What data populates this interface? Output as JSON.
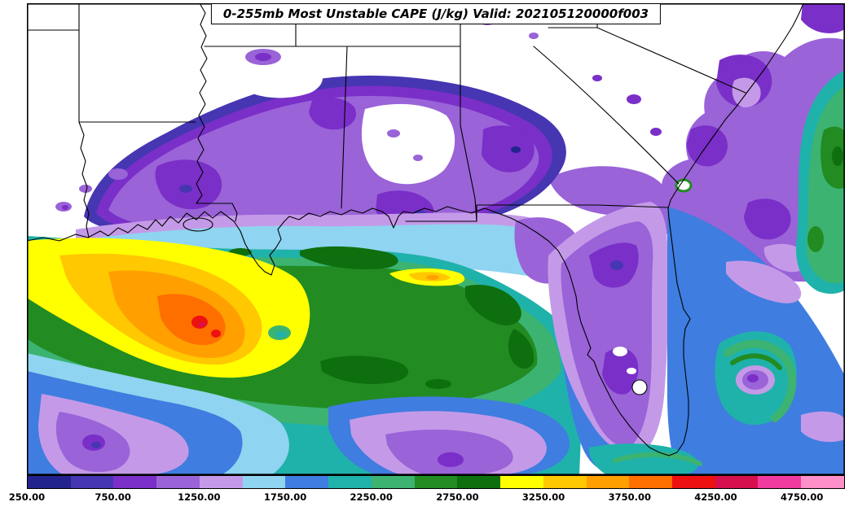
{
  "title": "0-255mb Most Unstable CAPE (J/kg) Valid: 202105120000f003",
  "chart_data": {
    "type": "heatmap",
    "title": "0-255mb Most Unstable CAPE (J/kg) Valid: 202105120000f003",
    "field": "Most Unstable CAPE, 0-255mb layer",
    "units": "J/kg",
    "valid_time": "202105120000f003",
    "region_shown": "Southeast United States and Gulf of Mexico (Texas coast to Atlantic, Tennessee to south of Florida)",
    "colorbar": {
      "orientation": "horizontal",
      "position": "bottom",
      "value_min": 250,
      "value_max": 5000,
      "contour_interval": 250,
      "tick_labels": [
        "250.00",
        "750.00",
        "1250.00",
        "1750.00",
        "2250.00",
        "2750.00",
        "3250.00",
        "3750.00",
        "4250.00",
        "4750.00"
      ],
      "tick_values": [
        250,
        750,
        1250,
        1750,
        2250,
        2750,
        3250,
        3750,
        4250,
        4750
      ],
      "segment_colors": [
        "#23238e",
        "#4636b2",
        "#7a2fc8",
        "#9a63d8",
        "#c49ae8",
        "#8fd4f0",
        "#3f7de0",
        "#1fb2aa",
        "#3cb371",
        "#228b22",
        "#0e6f0e",
        "#ffff00",
        "#ffc800",
        "#ff9f00",
        "#ff6f00",
        "#ee1111",
        "#d60f4e",
        "#f03a9e",
        "#ff8fc8"
      ]
    },
    "region_values_estimate": [
      {
        "area": "Northwest Gulf off Texas/Louisiana coast (maximum core)",
        "cape_jkg": "3000-4300"
      },
      {
        "area": "Central Gulf of Mexico",
        "cape_jkg": "2250-3000"
      },
      {
        "area": "Coastal strip Louisiana to Florida panhandle (tight gradient)",
        "cape_jkg": "1250-2250"
      },
      {
        "area": "Inland Louisiana / Mississippi / Alabama / south Georgia",
        "cape_jkg": "250-1250"
      },
      {
        "area": "Tennessee Valley and far inland",
        "cape_jkg": "< 250"
      },
      {
        "area": "Florida peninsula spine",
        "cape_jkg": "500-1000"
      },
      {
        "area": "Atlantic waters off Southeast coast",
        "cape_jkg": "750-1250"
      },
      {
        "area": "Far eastern edge of domain (Atlantic)",
        "cape_jkg": "2250-3000"
      },
      {
        "area": "Southwest corner of Gulf (bottom-left)",
        "cape_jkg": "1000-1750"
      },
      {
        "area": "South-central Gulf (bottom-center lobe)",
        "cape_jkg": "1000-1500"
      }
    ]
  }
}
